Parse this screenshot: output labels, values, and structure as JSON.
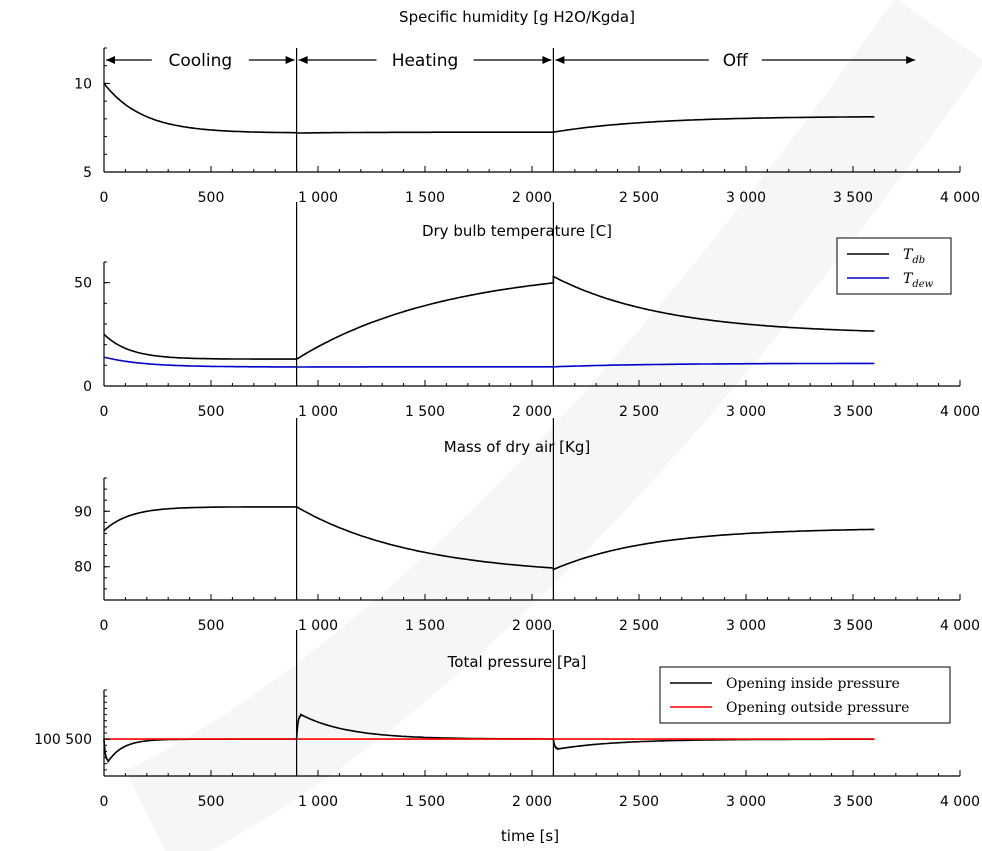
{
  "chart_data": [
    {
      "type": "line",
      "title": "Specific humidity [g H2O/Kgda]",
      "xlabel": "",
      "ylabel": "",
      "xlim": [
        0,
        4000
      ],
      "ylim": [
        5,
        12
      ],
      "xticks": [
        {
          "v": 0,
          "label": "0"
        },
        {
          "v": 500,
          "label": "500"
        },
        {
          "v": 1000,
          "label": "1 000"
        },
        {
          "v": 1500,
          "label": "1 500"
        },
        {
          "v": 2000,
          "label": "2 000"
        },
        {
          "v": 2500,
          "label": "2 500"
        },
        {
          "v": 3000,
          "label": "3 000"
        },
        {
          "v": 3500,
          "label": "3 500"
        },
        {
          "v": 4000,
          "label": "4 000"
        }
      ],
      "yticks": [
        {
          "v": 5,
          "label": "5"
        },
        {
          "v": 10,
          "label": "10"
        }
      ],
      "phase_lines": [
        900,
        2100
      ],
      "phases": [
        {
          "label": "Cooling",
          "start": 0,
          "end": 900
        },
        {
          "label": "Heating",
          "start": 900,
          "end": 2100
        },
        {
          "label": "Off",
          "start": 2100,
          "end": 3800
        }
      ],
      "series": [
        {
          "color": "#000000",
          "segments": [
            {
              "x0": 0,
              "x1": 900,
              "y_start": 10.0,
              "y_end": 7.2,
              "tau": 180
            },
            {
              "x0": 900,
              "x1": 2100,
              "y_start": 7.2,
              "y_end": 7.25,
              "tau": 300
            },
            {
              "x0": 2100,
              "x1": 3600,
              "y_start": 7.25,
              "y_end": 8.15,
              "tau": 450
            }
          ]
        }
      ]
    },
    {
      "type": "line",
      "title": "Dry bulb temperature [C]",
      "xlabel": "",
      "ylabel": "",
      "xlim": [
        0,
        4000
      ],
      "ylim": [
        0,
        60
      ],
      "xticks": [
        {
          "v": 0,
          "label": "0"
        },
        {
          "v": 500,
          "label": "500"
        },
        {
          "v": 1000,
          "label": "1 000"
        },
        {
          "v": 1500,
          "label": "1 500"
        },
        {
          "v": 2000,
          "label": "2 000"
        },
        {
          "v": 2500,
          "label": "2 500"
        },
        {
          "v": 3000,
          "label": "3 000"
        },
        {
          "v": 3500,
          "label": "3 500"
        },
        {
          "v": 4000,
          "label": "4 000"
        }
      ],
      "yticks": [
        {
          "v": 0,
          "label": "0"
        },
        {
          "v": 50,
          "label": "50"
        }
      ],
      "phase_lines": [
        900,
        2100
      ],
      "legend": {
        "position": "top-right",
        "style": "italic",
        "entries": [
          {
            "name": "T_db",
            "main": "T",
            "sub": "db",
            "color": "#000000"
          },
          {
            "name": "T_dew",
            "main": "T",
            "sub": "dew",
            "color": "#0000cc"
          }
        ]
      },
      "series": [
        {
          "name": "T_db",
          "color": "#000000",
          "segments": [
            {
              "x0": 0,
              "x1": 900,
              "y_start": 25.0,
              "y_end": 13.0,
              "tau": 120
            },
            {
              "x0": 900,
              "x1": 2100,
              "y_start": 13.0,
              "y_end": 58.0,
              "tau": 700
            },
            {
              "x0": 2100,
              "x1": 3600,
              "y_start": 53.0,
              "y_end": 25.0,
              "tau": 520
            }
          ]
        },
        {
          "name": "T_dew",
          "color": "#0000cc",
          "segments": [
            {
              "x0": 0,
              "x1": 900,
              "y_start": 14.0,
              "y_end": 9.2,
              "tau": 180
            },
            {
              "x0": 900,
              "x1": 2100,
              "y_start": 9.2,
              "y_end": 9.3,
              "tau": 300
            },
            {
              "x0": 2100,
              "x1": 3600,
              "y_start": 9.3,
              "y_end": 11.0,
              "tau": 450
            }
          ]
        }
      ]
    },
    {
      "type": "line",
      "title": "Mass of dry air [Kg]",
      "xlabel": "",
      "ylabel": "",
      "xlim": [
        0,
        4000
      ],
      "ylim": [
        74,
        96
      ],
      "xticks": [
        {
          "v": 0,
          "label": "0"
        },
        {
          "v": 500,
          "label": "500"
        },
        {
          "v": 1000,
          "label": "1 000"
        },
        {
          "v": 1500,
          "label": "1 500"
        },
        {
          "v": 2000,
          "label": "2 000"
        },
        {
          "v": 2500,
          "label": "2 500"
        },
        {
          "v": 3000,
          "label": "3 000"
        },
        {
          "v": 3500,
          "label": "3 500"
        },
        {
          "v": 4000,
          "label": "4 000"
        }
      ],
      "yticks": [
        {
          "v": 80,
          "label": "80"
        },
        {
          "v": 90,
          "label": "90"
        }
      ],
      "phase_lines": [
        900,
        2100
      ],
      "series": [
        {
          "color": "#000000",
          "segments": [
            {
              "x0": 0,
              "x1": 900,
              "y_start": 86.5,
              "y_end": 90.8,
              "tau": 120
            },
            {
              "x0": 900,
              "x1": 2100,
              "y_start": 90.8,
              "y_end": 78.3,
              "tau": 560
            },
            {
              "x0": 2100,
              "x1": 3600,
              "y_start": 79.5,
              "y_end": 87.0,
              "tau": 450
            }
          ]
        }
      ]
    },
    {
      "type": "line",
      "title": "Total pressure [Pa]",
      "xlabel": "time [s]",
      "ylabel": "",
      "xlim": [
        0,
        4000
      ],
      "ylim": [
        100350,
        100700
      ],
      "xticks": [
        {
          "v": 0,
          "label": "0"
        },
        {
          "v": 500,
          "label": "500"
        },
        {
          "v": 1000,
          "label": "1 000"
        },
        {
          "v": 1500,
          "label": "1 500"
        },
        {
          "v": 2000,
          "label": "2 000"
        },
        {
          "v": 2500,
          "label": "2 500"
        },
        {
          "v": 3000,
          "label": "3 000"
        },
        {
          "v": 3500,
          "label": "3 500"
        },
        {
          "v": 4000,
          "label": "4 000"
        }
      ],
      "yticks": [
        {
          "v": 100500,
          "label": "100 500"
        }
      ],
      "phase_lines": [
        900,
        2100
      ],
      "legend": {
        "position": "top-right",
        "style": "upright",
        "entries": [
          {
            "name": "Opening inside pressure",
            "color": "#000000"
          },
          {
            "name": "Opening outside pressure",
            "color": "#ff0000"
          }
        ]
      },
      "series": [
        {
          "name": "Opening inside pressure",
          "color": "#000000",
          "segments": [
            {
              "x0": 0,
              "x1": 20,
              "y_start": 100500,
              "y_end": 100410,
              "tau": 6
            },
            {
              "x0": 20,
              "x1": 900,
              "y_start": 100410,
              "y_end": 100500,
              "tau": 70
            },
            {
              "x0": 900,
              "x1": 920,
              "y_start": 100500,
              "y_end": 100600,
              "tau": 6
            },
            {
              "x0": 920,
              "x1": 2100,
              "y_start": 100600,
              "y_end": 100500,
              "tau": 220
            },
            {
              "x0": 2100,
              "x1": 2120,
              "y_start": 100500,
              "y_end": 100460,
              "tau": 6
            },
            {
              "x0": 2120,
              "x1": 3600,
              "y_start": 100460,
              "y_end": 100500,
              "tau": 280
            }
          ]
        },
        {
          "name": "Opening outside pressure",
          "color": "#ff0000",
          "segments": [
            {
              "x0": 0,
              "x1": 3600,
              "y_start": 100500,
              "y_end": 100500,
              "tau": 100
            }
          ]
        }
      ]
    }
  ]
}
